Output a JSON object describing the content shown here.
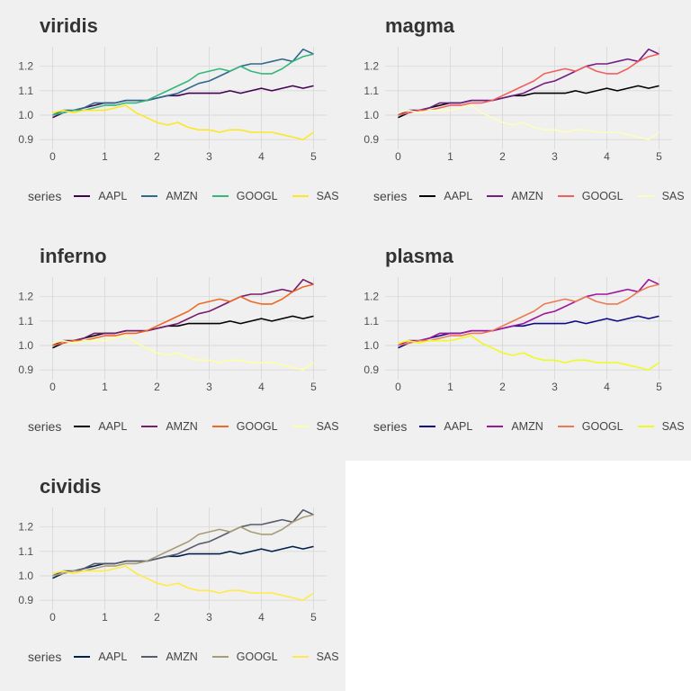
{
  "figure": {
    "background": "#f0f0f0",
    "grid_color": "#d9d9d9"
  },
  "chart_data": [
    {
      "type": "line",
      "title": "viridis",
      "legend_title": "series",
      "legend_position": "bottom",
      "grid": true,
      "xlim": [
        -0.25,
        5.25
      ],
      "ylim": [
        0.86,
        1.28
      ],
      "xticks": [
        0,
        1,
        2,
        3,
        4,
        5
      ],
      "yticks": [
        0.9,
        1.0,
        1.1,
        1.2
      ],
      "ytick_labels": [
        "0.9",
        "1.0",
        "1.1",
        "1.2"
      ],
      "x": [
        0,
        0.2,
        0.4,
        0.6,
        0.8,
        1.0,
        1.2,
        1.4,
        1.6,
        1.8,
        2.0,
        2.2,
        2.4,
        2.6,
        2.8,
        3.0,
        3.2,
        3.4,
        3.6,
        3.8,
        4.0,
        4.2,
        4.4,
        4.6,
        4.8,
        5.0
      ],
      "series": [
        {
          "name": "AAPL",
          "color": "#440154",
          "values": [
            0.99,
            1.01,
            1.02,
            1.03,
            1.04,
            1.05,
            1.05,
            1.06,
            1.06,
            1.06,
            1.07,
            1.08,
            1.08,
            1.09,
            1.09,
            1.09,
            1.09,
            1.1,
            1.09,
            1.1,
            1.11,
            1.1,
            1.11,
            1.12,
            1.11,
            1.12
          ]
        },
        {
          "name": "AMZN",
          "color": "#31688E",
          "values": [
            1.0,
            1.02,
            1.02,
            1.03,
            1.05,
            1.05,
            1.05,
            1.06,
            1.06,
            1.06,
            1.07,
            1.08,
            1.09,
            1.11,
            1.13,
            1.14,
            1.16,
            1.18,
            1.2,
            1.21,
            1.21,
            1.22,
            1.23,
            1.22,
            1.27,
            1.25
          ]
        },
        {
          "name": "GOOGL",
          "color": "#35B779",
          "values": [
            1.0,
            1.01,
            1.02,
            1.02,
            1.03,
            1.04,
            1.04,
            1.05,
            1.05,
            1.06,
            1.08,
            1.1,
            1.12,
            1.14,
            1.17,
            1.18,
            1.19,
            1.18,
            1.2,
            1.18,
            1.17,
            1.17,
            1.19,
            1.22,
            1.24,
            1.25
          ]
        },
        {
          "name": "SAS",
          "color": "#FDE725",
          "values": [
            1.01,
            1.02,
            1.01,
            1.02,
            1.02,
            1.02,
            1.03,
            1.04,
            1.01,
            0.99,
            0.97,
            0.96,
            0.97,
            0.95,
            0.94,
            0.94,
            0.93,
            0.94,
            0.94,
            0.93,
            0.93,
            0.93,
            0.92,
            0.91,
            0.9,
            0.93
          ]
        }
      ]
    },
    {
      "type": "line",
      "title": "magma",
      "legend_title": "series",
      "legend_position": "bottom",
      "grid": true,
      "xlim": [
        -0.25,
        5.25
      ],
      "ylim": [
        0.86,
        1.28
      ],
      "xticks": [
        0,
        1,
        2,
        3,
        4,
        5
      ],
      "yticks": [
        0.9,
        1.0,
        1.1,
        1.2
      ],
      "ytick_labels": [
        "0.9",
        "1.0",
        "1.1",
        "1.2"
      ],
      "x": [
        0,
        0.2,
        0.4,
        0.6,
        0.8,
        1.0,
        1.2,
        1.4,
        1.6,
        1.8,
        2.0,
        2.2,
        2.4,
        2.6,
        2.8,
        3.0,
        3.2,
        3.4,
        3.6,
        3.8,
        4.0,
        4.2,
        4.4,
        4.6,
        4.8,
        5.0
      ],
      "series": [
        {
          "name": "AAPL",
          "color": "#000004",
          "values": [
            0.99,
            1.01,
            1.02,
            1.03,
            1.04,
            1.05,
            1.05,
            1.06,
            1.06,
            1.06,
            1.07,
            1.08,
            1.08,
            1.09,
            1.09,
            1.09,
            1.09,
            1.1,
            1.09,
            1.1,
            1.11,
            1.1,
            1.11,
            1.12,
            1.11,
            1.12
          ]
        },
        {
          "name": "AMZN",
          "color": "#721F81",
          "values": [
            1.0,
            1.02,
            1.02,
            1.03,
            1.05,
            1.05,
            1.05,
            1.06,
            1.06,
            1.06,
            1.07,
            1.08,
            1.09,
            1.11,
            1.13,
            1.14,
            1.16,
            1.18,
            1.2,
            1.21,
            1.21,
            1.22,
            1.23,
            1.22,
            1.27,
            1.25
          ]
        },
        {
          "name": "GOOGL",
          "color": "#F1605D",
          "values": [
            1.0,
            1.01,
            1.02,
            1.02,
            1.03,
            1.04,
            1.04,
            1.05,
            1.05,
            1.06,
            1.08,
            1.1,
            1.12,
            1.14,
            1.17,
            1.18,
            1.19,
            1.18,
            1.2,
            1.18,
            1.17,
            1.17,
            1.19,
            1.22,
            1.24,
            1.25
          ]
        },
        {
          "name": "SAS",
          "color": "#FCFDBF",
          "values": [
            1.01,
            1.02,
            1.01,
            1.02,
            1.02,
            1.02,
            1.03,
            1.04,
            1.01,
            0.99,
            0.97,
            0.96,
            0.97,
            0.95,
            0.94,
            0.94,
            0.93,
            0.94,
            0.94,
            0.93,
            0.93,
            0.93,
            0.92,
            0.91,
            0.9,
            0.93
          ]
        }
      ]
    },
    {
      "type": "line",
      "title": "inferno",
      "legend_title": "series",
      "legend_position": "bottom",
      "grid": true,
      "xlim": [
        -0.25,
        5.25
      ],
      "ylim": [
        0.86,
        1.28
      ],
      "xticks": [
        0,
        1,
        2,
        3,
        4,
        5
      ],
      "yticks": [
        0.9,
        1.0,
        1.1,
        1.2
      ],
      "ytick_labels": [
        "0.9",
        "1.0",
        "1.1",
        "1.2"
      ],
      "x": [
        0,
        0.2,
        0.4,
        0.6,
        0.8,
        1.0,
        1.2,
        1.4,
        1.6,
        1.8,
        2.0,
        2.2,
        2.4,
        2.6,
        2.8,
        3.0,
        3.2,
        3.4,
        3.6,
        3.8,
        4.0,
        4.2,
        4.4,
        4.6,
        4.8,
        5.0
      ],
      "series": [
        {
          "name": "AAPL",
          "color": "#000004",
          "values": [
            0.99,
            1.01,
            1.02,
            1.03,
            1.04,
            1.05,
            1.05,
            1.06,
            1.06,
            1.06,
            1.07,
            1.08,
            1.08,
            1.09,
            1.09,
            1.09,
            1.09,
            1.1,
            1.09,
            1.1,
            1.11,
            1.1,
            1.11,
            1.12,
            1.11,
            1.12
          ]
        },
        {
          "name": "AMZN",
          "color": "#781C6D",
          "values": [
            1.0,
            1.02,
            1.02,
            1.03,
            1.05,
            1.05,
            1.05,
            1.06,
            1.06,
            1.06,
            1.07,
            1.08,
            1.09,
            1.11,
            1.13,
            1.14,
            1.16,
            1.18,
            1.2,
            1.21,
            1.21,
            1.22,
            1.23,
            1.22,
            1.27,
            1.25
          ]
        },
        {
          "name": "GOOGL",
          "color": "#ED6925",
          "values": [
            1.0,
            1.01,
            1.02,
            1.02,
            1.03,
            1.04,
            1.04,
            1.05,
            1.05,
            1.06,
            1.08,
            1.1,
            1.12,
            1.14,
            1.17,
            1.18,
            1.19,
            1.18,
            1.2,
            1.18,
            1.17,
            1.17,
            1.19,
            1.22,
            1.24,
            1.25
          ]
        },
        {
          "name": "SAS",
          "color": "#FCFFA4",
          "values": [
            1.01,
            1.02,
            1.01,
            1.02,
            1.02,
            1.02,
            1.03,
            1.04,
            1.01,
            0.99,
            0.97,
            0.96,
            0.97,
            0.95,
            0.94,
            0.94,
            0.93,
            0.94,
            0.94,
            0.93,
            0.93,
            0.93,
            0.92,
            0.91,
            0.9,
            0.93
          ]
        }
      ]
    },
    {
      "type": "line",
      "title": "plasma",
      "legend_title": "series",
      "legend_position": "bottom",
      "grid": true,
      "xlim": [
        -0.25,
        5.25
      ],
      "ylim": [
        0.86,
        1.28
      ],
      "xticks": [
        0,
        1,
        2,
        3,
        4,
        5
      ],
      "yticks": [
        0.9,
        1.0,
        1.1,
        1.2
      ],
      "ytick_labels": [
        "0.9",
        "1.0",
        "1.1",
        "1.2"
      ],
      "x": [
        0,
        0.2,
        0.4,
        0.6,
        0.8,
        1.0,
        1.2,
        1.4,
        1.6,
        1.8,
        2.0,
        2.2,
        2.4,
        2.6,
        2.8,
        3.0,
        3.2,
        3.4,
        3.6,
        3.8,
        4.0,
        4.2,
        4.4,
        4.6,
        4.8,
        5.0
      ],
      "series": [
        {
          "name": "AAPL",
          "color": "#0D0887",
          "values": [
            0.99,
            1.01,
            1.02,
            1.03,
            1.04,
            1.05,
            1.05,
            1.06,
            1.06,
            1.06,
            1.07,
            1.08,
            1.08,
            1.09,
            1.09,
            1.09,
            1.09,
            1.1,
            1.09,
            1.1,
            1.11,
            1.1,
            1.11,
            1.12,
            1.11,
            1.12
          ]
        },
        {
          "name": "AMZN",
          "color": "#9C179E",
          "values": [
            1.0,
            1.02,
            1.02,
            1.03,
            1.05,
            1.05,
            1.05,
            1.06,
            1.06,
            1.06,
            1.07,
            1.08,
            1.09,
            1.11,
            1.13,
            1.14,
            1.16,
            1.18,
            1.2,
            1.21,
            1.21,
            1.22,
            1.23,
            1.22,
            1.27,
            1.25
          ]
        },
        {
          "name": "GOOGL",
          "color": "#ED7953",
          "values": [
            1.0,
            1.01,
            1.02,
            1.02,
            1.03,
            1.04,
            1.04,
            1.05,
            1.05,
            1.06,
            1.08,
            1.1,
            1.12,
            1.14,
            1.17,
            1.18,
            1.19,
            1.18,
            1.2,
            1.18,
            1.17,
            1.17,
            1.19,
            1.22,
            1.24,
            1.25
          ]
        },
        {
          "name": "SAS",
          "color": "#F0F921",
          "values": [
            1.01,
            1.02,
            1.01,
            1.02,
            1.02,
            1.02,
            1.03,
            1.04,
            1.01,
            0.99,
            0.97,
            0.96,
            0.97,
            0.95,
            0.94,
            0.94,
            0.93,
            0.94,
            0.94,
            0.93,
            0.93,
            0.93,
            0.92,
            0.91,
            0.9,
            0.93
          ]
        }
      ]
    },
    {
      "type": "line",
      "title": "cividis",
      "legend_title": "series",
      "legend_position": "bottom",
      "grid": true,
      "xlim": [
        -0.25,
        5.25
      ],
      "ylim": [
        0.86,
        1.28
      ],
      "xticks": [
        0,
        1,
        2,
        3,
        4,
        5
      ],
      "yticks": [
        0.9,
        1.0,
        1.1,
        1.2
      ],
      "ytick_labels": [
        "0.9",
        "1.0",
        "1.1",
        "1.2"
      ],
      "x": [
        0,
        0.2,
        0.4,
        0.6,
        0.8,
        1.0,
        1.2,
        1.4,
        1.6,
        1.8,
        2.0,
        2.2,
        2.4,
        2.6,
        2.8,
        3.0,
        3.2,
        3.4,
        3.6,
        3.8,
        4.0,
        4.2,
        4.4,
        4.6,
        4.8,
        5.0
      ],
      "series": [
        {
          "name": "AAPL",
          "color": "#00204D",
          "values": [
            0.99,
            1.01,
            1.02,
            1.03,
            1.04,
            1.05,
            1.05,
            1.06,
            1.06,
            1.06,
            1.07,
            1.08,
            1.08,
            1.09,
            1.09,
            1.09,
            1.09,
            1.1,
            1.09,
            1.1,
            1.11,
            1.1,
            1.11,
            1.12,
            1.11,
            1.12
          ]
        },
        {
          "name": "AMZN",
          "color": "#575C6D",
          "values": [
            1.0,
            1.02,
            1.02,
            1.03,
            1.05,
            1.05,
            1.05,
            1.06,
            1.06,
            1.06,
            1.07,
            1.08,
            1.09,
            1.11,
            1.13,
            1.14,
            1.16,
            1.18,
            1.2,
            1.21,
            1.21,
            1.22,
            1.23,
            1.22,
            1.27,
            1.25
          ]
        },
        {
          "name": "GOOGL",
          "color": "#A69D75",
          "values": [
            1.0,
            1.01,
            1.02,
            1.02,
            1.03,
            1.04,
            1.04,
            1.05,
            1.05,
            1.06,
            1.08,
            1.1,
            1.12,
            1.14,
            1.17,
            1.18,
            1.19,
            1.18,
            1.2,
            1.18,
            1.17,
            1.17,
            1.19,
            1.22,
            1.24,
            1.25
          ]
        },
        {
          "name": "SAS",
          "color": "#FFEA46",
          "values": [
            1.01,
            1.02,
            1.01,
            1.02,
            1.02,
            1.02,
            1.03,
            1.04,
            1.01,
            0.99,
            0.97,
            0.96,
            0.97,
            0.95,
            0.94,
            0.94,
            0.93,
            0.94,
            0.94,
            0.93,
            0.93,
            0.93,
            0.92,
            0.91,
            0.9,
            0.93
          ]
        }
      ]
    }
  ]
}
